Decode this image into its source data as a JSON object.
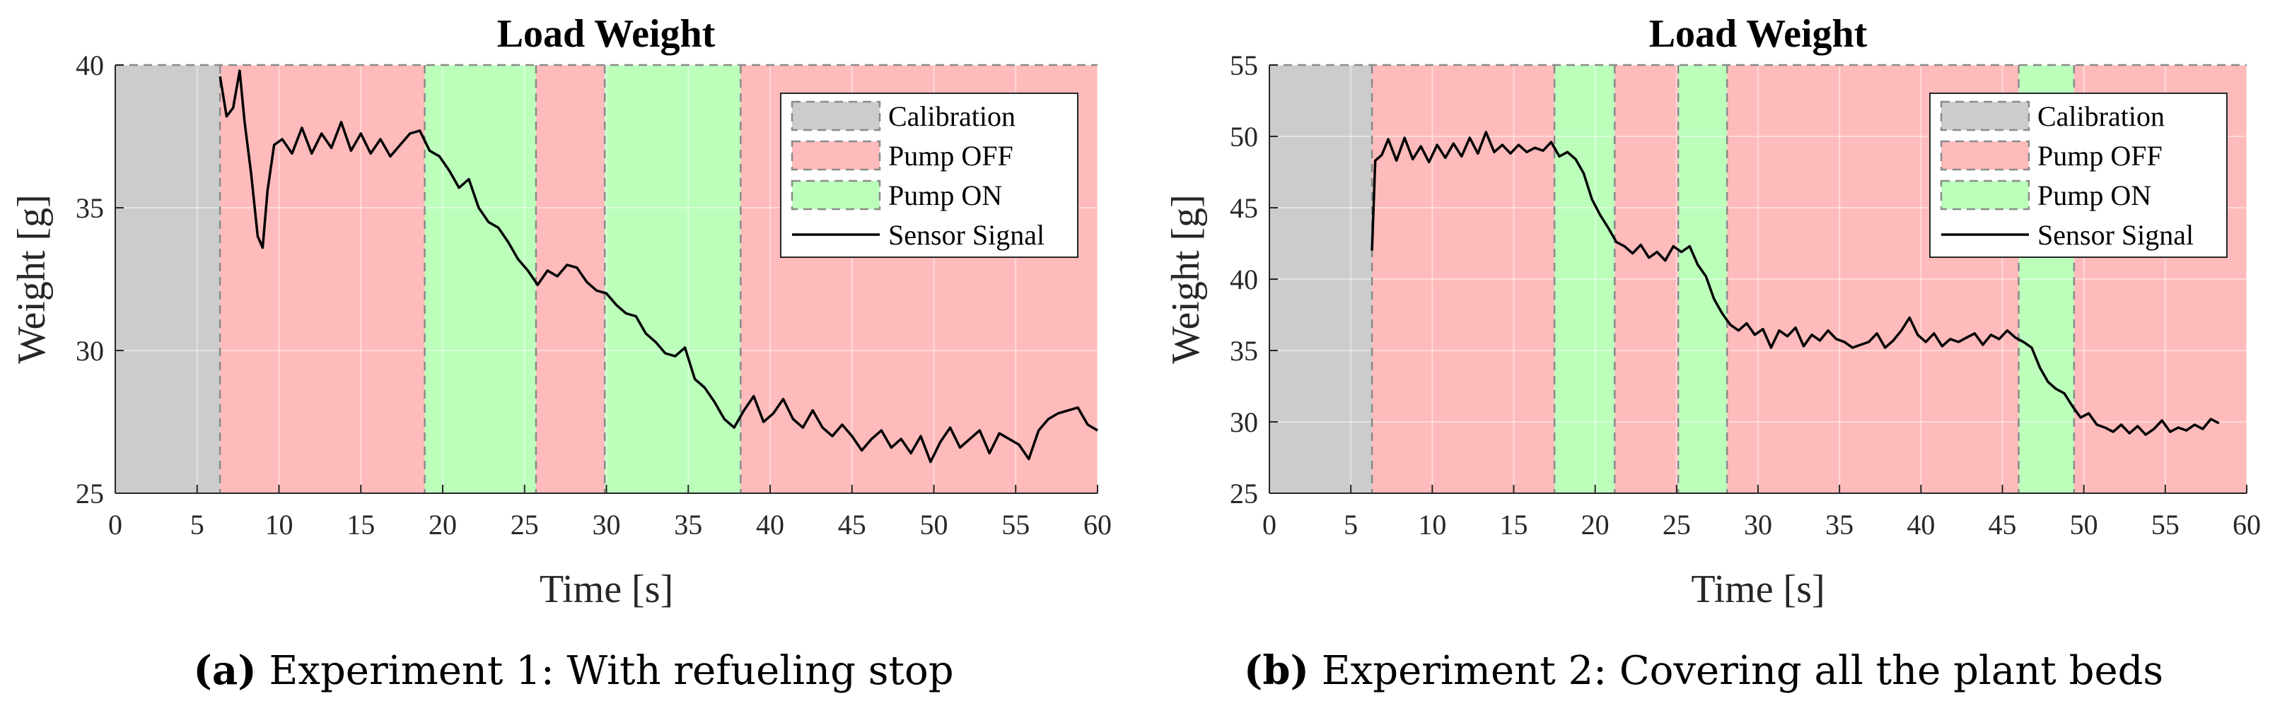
{
  "colors": {
    "calibration": "#cccccc",
    "pump_off": "#ffbbbb",
    "pump_on": "#bbffbb",
    "signal": "#000000",
    "grid": "#ffffff",
    "dash": "#8a8a8a"
  },
  "chart_data": [
    {
      "type": "line",
      "title": "Load Weight",
      "xlabel": "Time [s]",
      "ylabel": "Weight [g]",
      "xlim": [
        0,
        60
      ],
      "ylim": [
        25,
        40
      ],
      "xticks": [
        0,
        5,
        10,
        15,
        20,
        25,
        30,
        35,
        40,
        45,
        50,
        55,
        60
      ],
      "yticks": [
        25,
        30,
        35,
        40
      ],
      "grid": true,
      "legend_position": "top-right",
      "legend": [
        "Calibration",
        "Pump OFF",
        "Pump ON",
        "Sensor Signal"
      ],
      "regions": [
        {
          "label": "Calibration",
          "start": 0,
          "end": 6.4
        },
        {
          "label": "Pump OFF",
          "start": 6.4,
          "end": 18.9
        },
        {
          "label": "Pump ON",
          "start": 18.9,
          "end": 25.7
        },
        {
          "label": "Pump OFF",
          "start": 25.7,
          "end": 29.9
        },
        {
          "label": "Pump ON",
          "start": 29.9,
          "end": 38.2
        },
        {
          "label": "Pump OFF",
          "start": 38.2,
          "end": 60
        }
      ],
      "series": [
        {
          "name": "Sensor Signal",
          "x": [
            6.4,
            6.8,
            7.2,
            7.6,
            7.9,
            8.3,
            8.7,
            9.0,
            9.3,
            9.7,
            10.2,
            10.8,
            11.4,
            12.0,
            12.6,
            13.2,
            13.8,
            14.4,
            15.0,
            15.6,
            16.2,
            16.8,
            17.4,
            18.0,
            18.6,
            19.2,
            19.8,
            20.4,
            21.0,
            21.6,
            22.2,
            22.8,
            23.4,
            24.0,
            24.6,
            25.2,
            25.8,
            26.4,
            27.0,
            27.6,
            28.2,
            28.8,
            29.4,
            30.0,
            30.6,
            31.2,
            31.8,
            32.4,
            33.0,
            33.6,
            34.2,
            34.8,
            35.4,
            36.0,
            36.6,
            37.2,
            37.8,
            38.4,
            39.0,
            39.6,
            40.2,
            40.8,
            41.4,
            42.0,
            42.6,
            43.2,
            43.8,
            44.4,
            45.0,
            45.6,
            46.2,
            46.8,
            47.4,
            48.0,
            48.6,
            49.2,
            49.8,
            50.4,
            51.0,
            51.6,
            52.2,
            52.8,
            53.4,
            54.0,
            54.6,
            55.2,
            55.8,
            56.4,
            57.0,
            57.6,
            58.2,
            58.8,
            59.4,
            60.0
          ],
          "values": [
            39.6,
            38.2,
            38.5,
            39.8,
            38.0,
            36.2,
            34.0,
            33.6,
            35.6,
            37.2,
            37.4,
            36.9,
            37.8,
            36.9,
            37.6,
            37.1,
            38.0,
            37.0,
            37.6,
            36.9,
            37.4,
            36.8,
            37.2,
            37.6,
            37.7,
            37.0,
            36.8,
            36.3,
            35.7,
            36.0,
            35.0,
            34.5,
            34.3,
            33.8,
            33.2,
            32.8,
            32.3,
            32.8,
            32.6,
            33.0,
            32.9,
            32.4,
            32.1,
            32.0,
            31.6,
            31.3,
            31.2,
            30.6,
            30.3,
            29.9,
            29.8,
            30.1,
            29.0,
            28.7,
            28.2,
            27.6,
            27.3,
            27.9,
            28.4,
            27.5,
            27.8,
            28.3,
            27.6,
            27.3,
            27.9,
            27.3,
            27.0,
            27.4,
            27.0,
            26.5,
            26.9,
            27.2,
            26.6,
            26.9,
            26.4,
            27.0,
            26.1,
            26.8,
            27.3,
            26.6,
            26.9,
            27.2,
            26.4,
            27.1,
            26.9,
            26.7,
            26.2,
            27.2,
            27.6,
            27.8,
            27.9,
            28.0,
            27.4,
            27.2
          ]
        }
      ]
    },
    {
      "type": "line",
      "title": "Load Weight",
      "xlabel": "Time [s]",
      "ylabel": "Weight [g]",
      "xlim": [
        0,
        60
      ],
      "ylim": [
        25,
        55
      ],
      "xticks": [
        0,
        5,
        10,
        15,
        20,
        25,
        30,
        35,
        40,
        45,
        50,
        55,
        60
      ],
      "yticks": [
        25,
        30,
        35,
        40,
        45,
        50,
        55
      ],
      "grid": true,
      "legend_position": "top-right",
      "legend": [
        "Calibration",
        "Pump OFF",
        "Pump ON",
        "Sensor Signal"
      ],
      "regions": [
        {
          "label": "Calibration",
          "start": 0,
          "end": 6.3
        },
        {
          "label": "Pump OFF",
          "start": 6.3,
          "end": 17.5
        },
        {
          "label": "Pump ON",
          "start": 17.5,
          "end": 21.2
        },
        {
          "label": "Pump OFF",
          "start": 21.2,
          "end": 25.1
        },
        {
          "label": "Pump ON",
          "start": 25.1,
          "end": 28.1
        },
        {
          "label": "Pump OFF",
          "start": 28.1,
          "end": 46.0
        },
        {
          "label": "Pump ON",
          "start": 46.0,
          "end": 49.4
        },
        {
          "label": "Pump OFF",
          "start": 49.4,
          "end": 60
        }
      ],
      "series": [
        {
          "name": "Sensor Signal",
          "x": [
            6.3,
            6.5,
            6.9,
            7.3,
            7.8,
            8.3,
            8.8,
            9.3,
            9.8,
            10.3,
            10.8,
            11.3,
            11.8,
            12.3,
            12.8,
            13.3,
            13.8,
            14.3,
            14.8,
            15.3,
            15.8,
            16.3,
            16.8,
            17.3,
            17.8,
            18.3,
            18.8,
            19.3,
            19.8,
            20.3,
            20.8,
            21.3,
            21.8,
            22.3,
            22.8,
            23.3,
            23.8,
            24.3,
            24.8,
            25.3,
            25.8,
            26.3,
            26.8,
            27.3,
            27.8,
            28.3,
            28.8,
            29.3,
            29.8,
            30.3,
            30.8,
            31.3,
            31.8,
            32.3,
            32.8,
            33.3,
            33.8,
            34.3,
            34.8,
            35.3,
            35.8,
            36.3,
            36.8,
            37.3,
            37.8,
            38.3,
            38.8,
            39.3,
            39.8,
            40.3,
            40.8,
            41.3,
            41.8,
            42.3,
            42.8,
            43.3,
            43.8,
            44.3,
            44.8,
            45.3,
            45.8,
            46.3,
            46.8,
            47.3,
            47.8,
            48.3,
            48.8,
            49.3,
            49.8,
            50.3,
            50.8,
            51.3,
            51.8,
            52.3,
            52.8,
            53.3,
            53.8,
            54.3,
            54.8,
            55.3,
            55.8,
            56.3,
            56.8,
            57.3,
            57.8,
            58.3
          ],
          "values": [
            42.0,
            48.3,
            48.7,
            49.8,
            48.3,
            49.9,
            48.4,
            49.3,
            48.2,
            49.4,
            48.5,
            49.5,
            48.6,
            49.9,
            48.8,
            50.3,
            48.9,
            49.4,
            48.8,
            49.4,
            48.9,
            49.2,
            49.0,
            49.6,
            48.6,
            48.9,
            48.4,
            47.4,
            45.6,
            44.5,
            43.6,
            42.6,
            42.3,
            41.8,
            42.4,
            41.5,
            41.9,
            41.3,
            42.3,
            41.9,
            42.3,
            41.0,
            40.2,
            38.6,
            37.6,
            36.8,
            36.4,
            36.9,
            36.1,
            36.5,
            35.2,
            36.4,
            36.0,
            36.6,
            35.3,
            36.1,
            35.7,
            36.4,
            35.8,
            35.6,
            35.2,
            35.4,
            35.6,
            36.2,
            35.2,
            35.7,
            36.4,
            37.3,
            36.1,
            35.6,
            36.2,
            35.3,
            35.8,
            35.6,
            35.9,
            36.2,
            35.4,
            36.1,
            35.8,
            36.4,
            35.9,
            35.6,
            35.2,
            33.8,
            32.8,
            32.3,
            32.0,
            31.1,
            30.3,
            30.6,
            29.8,
            29.6,
            29.3,
            29.8,
            29.2,
            29.7,
            29.1,
            29.5,
            30.1,
            29.3,
            29.6,
            29.4,
            29.8,
            29.5,
            30.2,
            29.9
          ]
        }
      ]
    }
  ],
  "captions": [
    {
      "letter": "(a)",
      "text": " Experiment 1: With refueling stop"
    },
    {
      "letter": "(b)",
      "text": " Experiment 2: Covering all the plant beds"
    }
  ]
}
